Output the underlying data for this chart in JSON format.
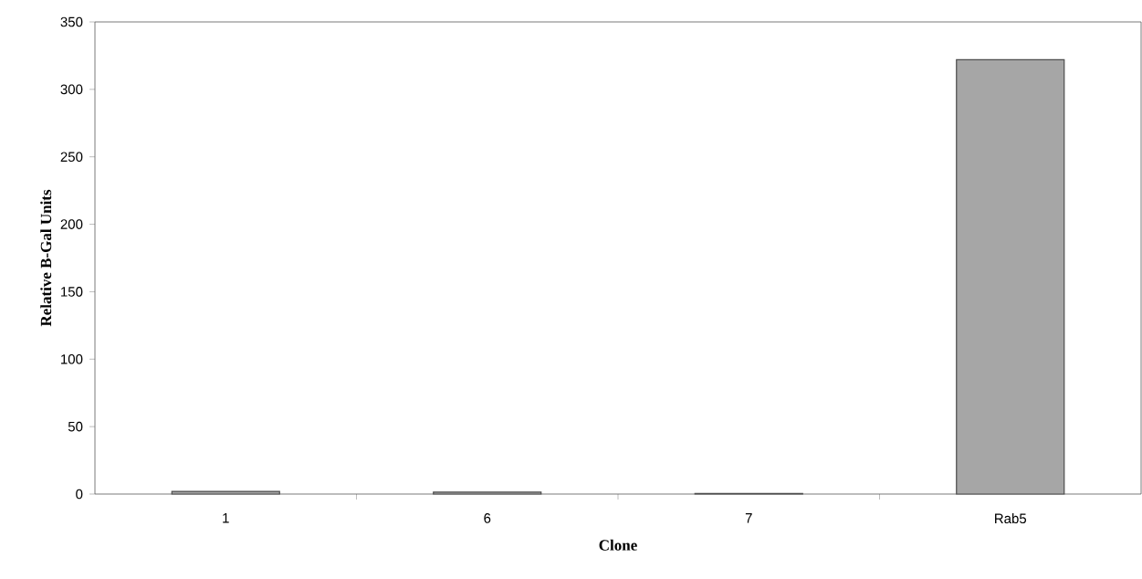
{
  "chart_data": {
    "type": "bar",
    "xlabel": "Clone",
    "ylabel": "Relative B-Gal Units",
    "categories": [
      "1",
      "6",
      "7",
      "Rab5"
    ],
    "values": [
      2,
      1.5,
      0.5,
      322
    ],
    "color": "#a6a6a6",
    "ylim": [
      0,
      350
    ],
    "yticks": [
      0,
      50,
      100,
      150,
      200,
      250,
      300,
      350
    ],
    "grid": false
  }
}
